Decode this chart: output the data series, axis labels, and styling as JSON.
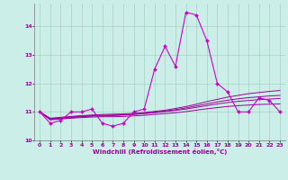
{
  "xlabel": "Windchill (Refroidissement éolien,°C)",
  "ylabel": "",
  "xlim": [
    -0.5,
    23.5
  ],
  "ylim": [
    10.0,
    14.8
  ],
  "yticks": [
    10,
    11,
    12,
    13,
    14
  ],
  "xticks": [
    0,
    1,
    2,
    3,
    4,
    5,
    6,
    7,
    8,
    9,
    10,
    11,
    12,
    13,
    14,
    15,
    16,
    17,
    18,
    19,
    20,
    21,
    22,
    23
  ],
  "background_color": "#cceee8",
  "grid_color": "#99ccbb",
  "line_color": "#990099",
  "line_color2": "#cc00cc",
  "series": {
    "main": [
      11.0,
      10.6,
      10.7,
      11.0,
      11.0,
      11.1,
      10.6,
      10.5,
      10.6,
      11.0,
      11.1,
      12.5,
      13.3,
      12.6,
      14.5,
      14.4,
      13.5,
      12.0,
      11.7,
      11.0,
      11.0,
      11.5,
      11.4,
      11.0
    ],
    "smooth1": [
      11.0,
      10.72,
      10.75,
      10.78,
      10.8,
      10.82,
      10.83,
      10.83,
      10.84,
      10.86,
      10.88,
      10.91,
      10.94,
      10.97,
      11.01,
      11.06,
      11.11,
      11.15,
      11.19,
      11.22,
      11.24,
      11.26,
      11.27,
      11.28
    ],
    "smooth2": [
      11.0,
      10.74,
      10.77,
      10.8,
      10.83,
      10.85,
      10.86,
      10.87,
      10.89,
      10.91,
      10.94,
      10.97,
      11.01,
      11.05,
      11.1,
      11.16,
      11.22,
      11.28,
      11.33,
      11.37,
      11.4,
      11.43,
      11.45,
      11.47
    ],
    "smooth3": [
      11.0,
      10.76,
      10.79,
      10.82,
      10.85,
      10.87,
      10.88,
      10.89,
      10.9,
      10.92,
      10.95,
      10.99,
      11.03,
      11.08,
      11.14,
      11.21,
      11.28,
      11.35,
      11.41,
      11.46,
      11.5,
      11.53,
      11.56,
      11.58
    ],
    "smooth4": [
      11.0,
      10.78,
      10.81,
      10.84,
      10.87,
      10.89,
      10.91,
      10.92,
      10.93,
      10.95,
      10.98,
      11.02,
      11.06,
      11.12,
      11.19,
      11.27,
      11.36,
      11.44,
      11.52,
      11.58,
      11.64,
      11.68,
      11.72,
      11.75
    ]
  }
}
